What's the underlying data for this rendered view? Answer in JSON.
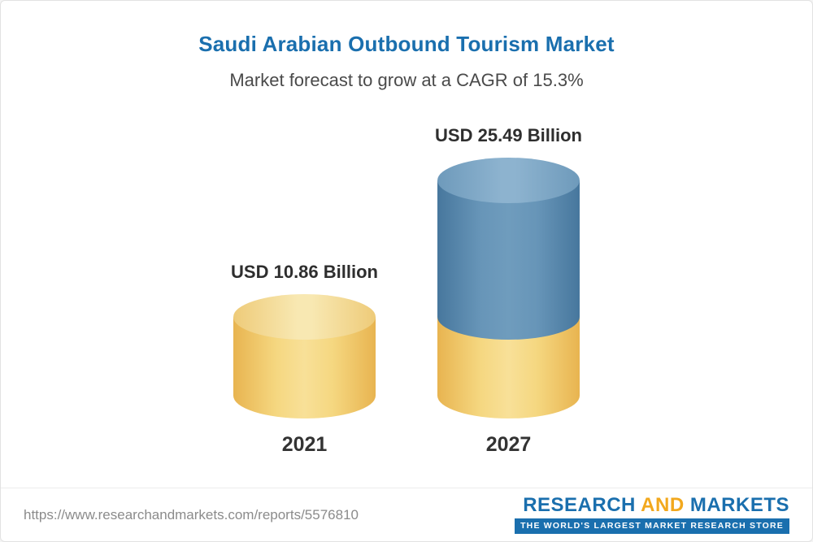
{
  "header": {
    "title": "Saudi Arabian Outbound Tourism Market",
    "subtitle": "Market forecast to grow at a CAGR of 15.3%"
  },
  "chart_data": {
    "type": "bar",
    "title": "Saudi Arabian Outbound Tourism Market",
    "subtitle": "Market forecast to grow at a CAGR of 15.3%",
    "cagr_percent": 15.3,
    "categories": [
      "2021",
      "2027"
    ],
    "values": [
      10.86,
      25.49
    ],
    "unit": "USD Billion",
    "value_labels": [
      "USD 10.86 Billion",
      "USD 25.49 Billion"
    ],
    "ylim": [
      0,
      26
    ],
    "grid": false,
    "legend": "none",
    "colors": {
      "bar_2021": "#F2CE6F",
      "bar_2027_growth_segment": "#5F8DB0",
      "bar_2027_base_segment": "#F2CE6F",
      "title_text": "#1A6FAE",
      "label_text": "#2E2E2E"
    }
  },
  "footer": {
    "source_url": "https://www.researchandmarkets.com/reports/5576810",
    "logo": {
      "research": "RESEARCH",
      "and": "AND",
      "markets": "MARKETS",
      "tagline": "THE WORLD'S LARGEST MARKET RESEARCH STORE"
    }
  }
}
